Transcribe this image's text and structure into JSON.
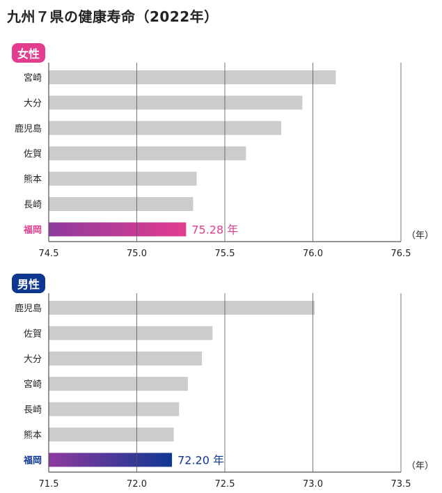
{
  "title": "九州７県の健康寿命（2022年）",
  "unit_label": "（年）",
  "chart_data": [
    {
      "type": "bar",
      "orientation": "horizontal",
      "group_label": "女性",
      "categories": [
        "宮崎",
        "大分",
        "鹿児島",
        "佐賀",
        "熊本",
        "長崎",
        "福岡"
      ],
      "values": [
        76.13,
        75.94,
        75.82,
        75.62,
        75.34,
        75.32,
        75.28
      ],
      "highlight": {
        "category": "福岡",
        "value_label": "75.28 年"
      },
      "xlim": [
        74.5,
        76.5
      ],
      "xticks": [
        "74.5",
        "75.0",
        "75.5",
        "76.0",
        "76.5"
      ],
      "grid": true,
      "colors": {
        "bar": "#cccccc",
        "highlight_from": "#8e3a9e",
        "highlight_to": "#e23d8f",
        "label": "#e23d8f"
      }
    },
    {
      "type": "bar",
      "orientation": "horizontal",
      "group_label": "男性",
      "categories": [
        "鹿児島",
        "佐賀",
        "大分",
        "宮崎",
        "長崎",
        "熊本",
        "福岡"
      ],
      "values": [
        73.01,
        72.43,
        72.37,
        72.29,
        72.24,
        72.21,
        72.2
      ],
      "highlight": {
        "category": "福岡",
        "value_label": "72.20 年"
      },
      "xlim": [
        71.5,
        73.5
      ],
      "xticks": [
        "71.5",
        "72.0",
        "72.5",
        "73.0",
        "73.5"
      ],
      "grid": true,
      "colors": {
        "bar": "#cccccc",
        "highlight_from": "#8e3a9e",
        "highlight_to": "#0f3792",
        "label": "#0f3792"
      }
    }
  ]
}
